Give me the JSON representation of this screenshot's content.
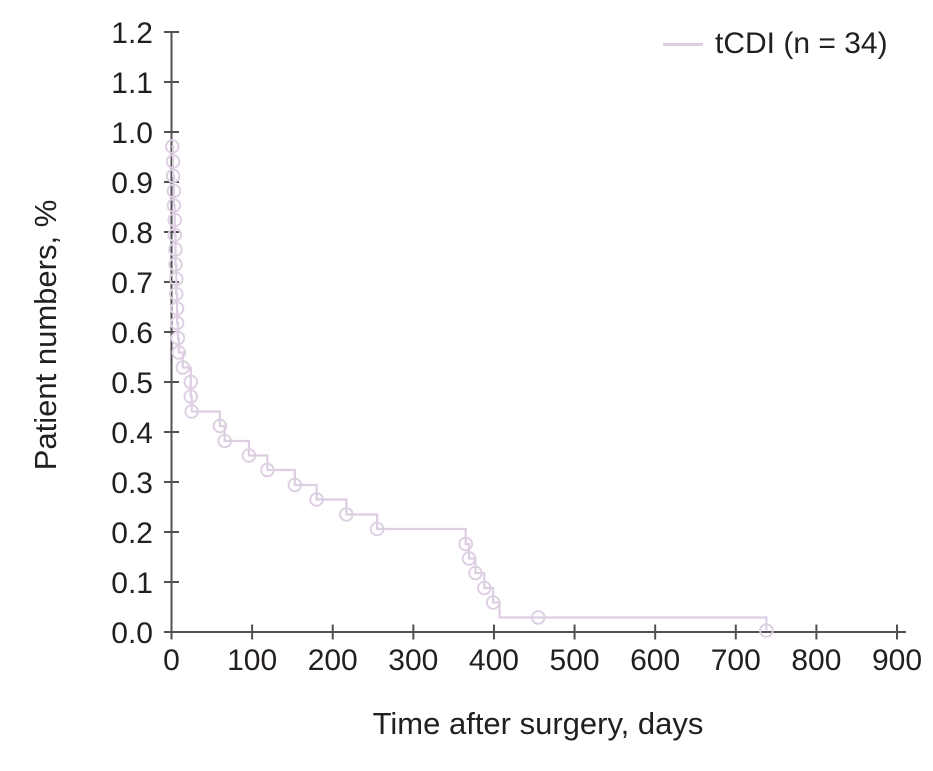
{
  "legend": {
    "label": "tCDI (n = 34)",
    "swatch_color": "#ddcee2"
  },
  "chart_data": {
    "type": "line",
    "subtype": "kaplan-meier-step-curve",
    "title": "",
    "xlabel": "Time after surgery, days",
    "ylabel": "Patient numbers, %",
    "xlim": [
      0,
      900
    ],
    "ylim": [
      0,
      1.2
    ],
    "x_ticks": [
      0,
      100,
      200,
      300,
      400,
      500,
      600,
      700,
      800,
      900
    ],
    "y_ticks": [
      0.0,
      0.1,
      0.2,
      0.3,
      0.4,
      0.5,
      0.6,
      0.7,
      0.8,
      0.9,
      1.0,
      1.1,
      1.2
    ],
    "y_tick_labels": [
      "0.0",
      "0.1",
      "0.2",
      "0.3",
      "0.4",
      "0.5",
      "0.6",
      "0.7",
      "0.8",
      "0.9",
      "1.0",
      "1.1",
      "1.2"
    ],
    "grid": false,
    "legend_position": "top-right",
    "axis_color": "#515153",
    "text_color": "#231f20",
    "series": [
      {
        "name": "tCDI (n = 34)",
        "n": 34,
        "color": "#ddcee2",
        "marker": "open-circle",
        "points": [
          {
            "t": 0,
            "s": 0.971,
            "m": 0
          },
          {
            "t": 1,
            "s": 0.971,
            "m": 1
          },
          {
            "t": 2,
            "s": 0.941,
            "m": 1
          },
          {
            "t": 2,
            "s": 0.912,
            "m": 1
          },
          {
            "t": 3,
            "s": 0.882,
            "m": 1
          },
          {
            "t": 3,
            "s": 0.853,
            "m": 1
          },
          {
            "t": 4,
            "s": 0.824,
            "m": 1
          },
          {
            "t": 4,
            "s": 0.794,
            "m": 1
          },
          {
            "t": 5,
            "s": 0.765,
            "m": 1
          },
          {
            "t": 5,
            "s": 0.735,
            "m": 1
          },
          {
            "t": 6,
            "s": 0.706,
            "m": 1
          },
          {
            "t": 6,
            "s": 0.676,
            "m": 1
          },
          {
            "t": 7,
            "s": 0.647,
            "m": 1
          },
          {
            "t": 7,
            "s": 0.618,
            "m": 1
          },
          {
            "t": 8,
            "s": 0.588,
            "m": 1
          },
          {
            "t": 9,
            "s": 0.559,
            "m": 1
          },
          {
            "t": 14,
            "s": 0.529,
            "m": 1
          },
          {
            "t": 24,
            "s": 0.5,
            "m": 1
          },
          {
            "t": 24,
            "s": 0.471,
            "m": 1
          },
          {
            "t": 25,
            "s": 0.441,
            "m": 1
          },
          {
            "t": 60,
            "s": 0.412,
            "m": 1
          },
          {
            "t": 66,
            "s": 0.382,
            "m": 1
          },
          {
            "t": 96,
            "s": 0.353,
            "m": 1
          },
          {
            "t": 119,
            "s": 0.324,
            "m": 1
          },
          {
            "t": 153,
            "s": 0.294,
            "m": 1
          },
          {
            "t": 180,
            "s": 0.265,
            "m": 1
          },
          {
            "t": 217,
            "s": 0.235,
            "m": 1
          },
          {
            "t": 255,
            "s": 0.206,
            "m": 1
          },
          {
            "t": 365,
            "s": 0.176,
            "m": 1
          },
          {
            "t": 369,
            "s": 0.147,
            "m": 1
          },
          {
            "t": 377,
            "s": 0.118,
            "m": 1
          },
          {
            "t": 388,
            "s": 0.088,
            "m": 1
          },
          {
            "t": 399,
            "s": 0.059,
            "m": 1
          },
          {
            "t": 407,
            "s": 0.029,
            "m": 0
          },
          {
            "t": 455,
            "s": 0.029,
            "m": 1,
            "censor": true
          },
          {
            "t": 738,
            "s": 0.003,
            "m": 1
          }
        ]
      }
    ]
  }
}
